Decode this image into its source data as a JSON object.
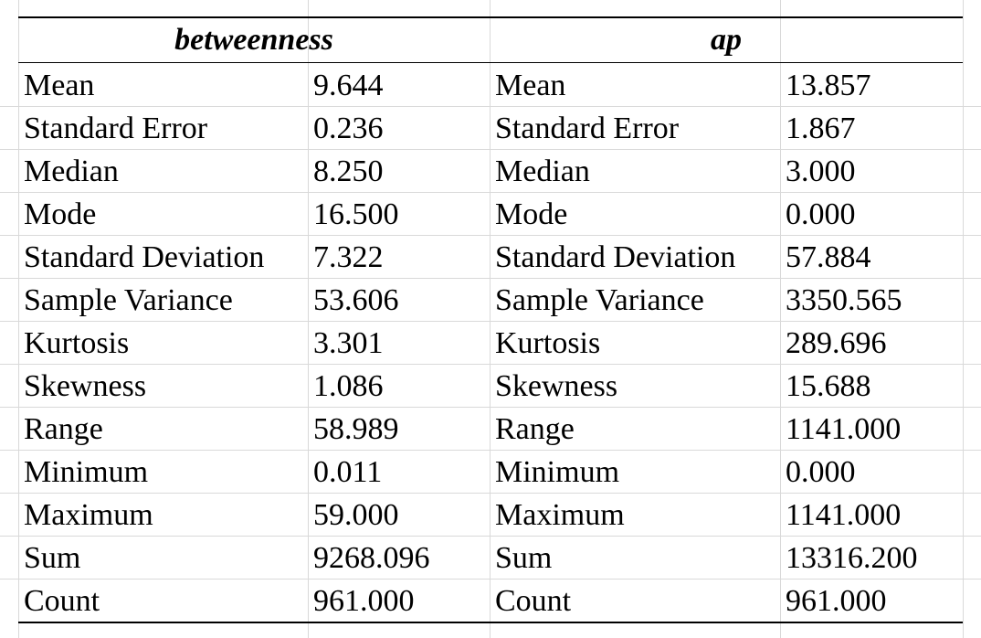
{
  "tables": [
    {
      "header": "betweenness",
      "rows": [
        {
          "label": "Mean",
          "value": "9.644"
        },
        {
          "label": "Standard Error",
          "value": "0.236"
        },
        {
          "label": "Median",
          "value": "8.250"
        },
        {
          "label": "Mode",
          "value": "16.500"
        },
        {
          "label": "Standard Deviation",
          "value": "7.322"
        },
        {
          "label": "Sample Variance",
          "value": "53.606"
        },
        {
          "label": "Kurtosis",
          "value": "3.301"
        },
        {
          "label": "Skewness",
          "value": "1.086"
        },
        {
          "label": "Range",
          "value": "58.989"
        },
        {
          "label": "Minimum",
          "value": "0.011"
        },
        {
          "label": "Maximum",
          "value": "59.000"
        },
        {
          "label": "Sum",
          "value": "9268.096"
        },
        {
          "label": "Count",
          "value": "961.000"
        }
      ]
    },
    {
      "header": "ap",
      "rows": [
        {
          "label": "Mean",
          "value": "13.857"
        },
        {
          "label": "Standard Error",
          "value": "1.867"
        },
        {
          "label": "Median",
          "value": "3.000"
        },
        {
          "label": "Mode",
          "value": "0.000"
        },
        {
          "label": "Standard Deviation",
          "value": "57.884"
        },
        {
          "label": "Sample Variance",
          "value": "3350.565"
        },
        {
          "label": "Kurtosis",
          "value": "289.696"
        },
        {
          "label": "Skewness",
          "value": "15.688"
        },
        {
          "label": "Range",
          "value": "1141.000"
        },
        {
          "label": "Minimum",
          "value": "0.000"
        },
        {
          "label": "Maximum",
          "value": "1141.000"
        },
        {
          "label": "Sum",
          "value": "13316.200"
        },
        {
          "label": "Count",
          "value": "961.000"
        }
      ]
    }
  ]
}
